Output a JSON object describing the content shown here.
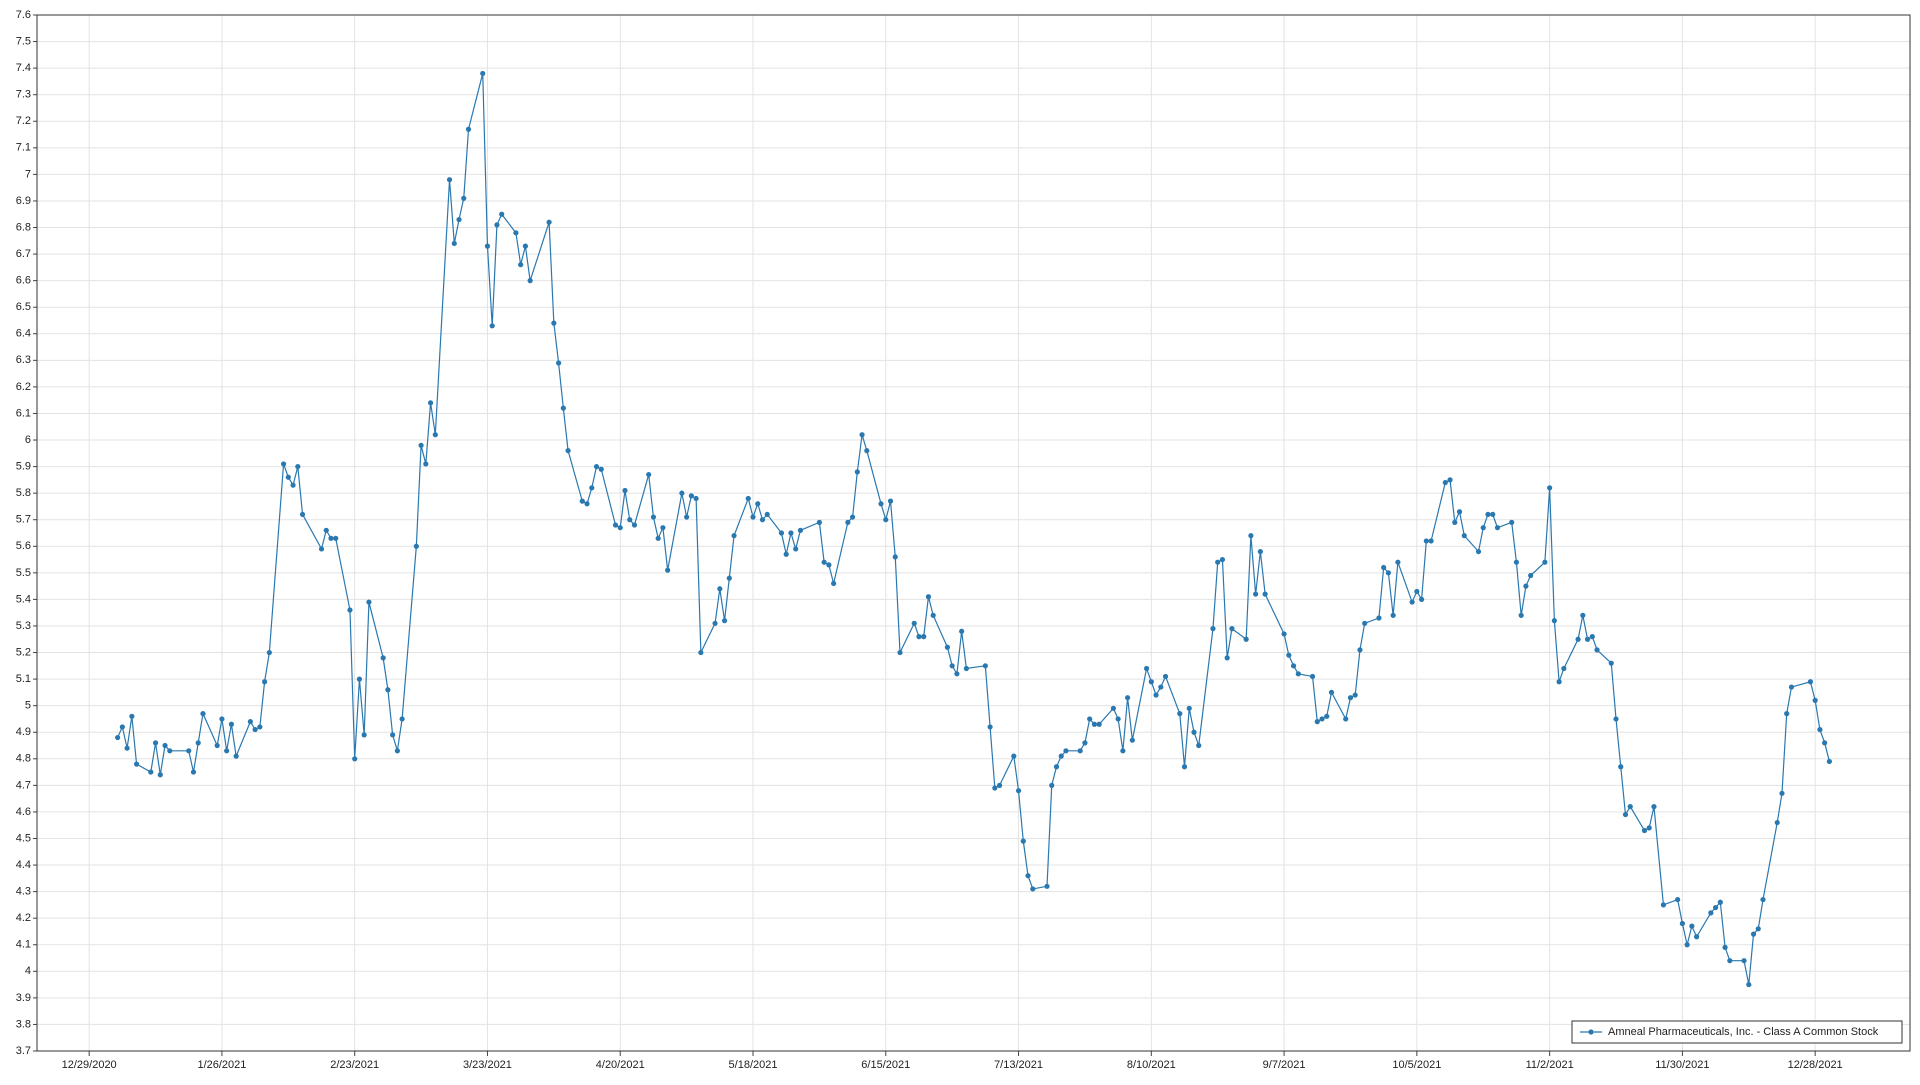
{
  "chart_data": {
    "type": "line",
    "x": [
      "2021-01-04",
      "2021-01-05",
      "2021-01-06",
      "2021-01-07",
      "2021-01-08",
      "2021-01-11",
      "2021-01-12",
      "2021-01-13",
      "2021-01-14",
      "2021-01-15",
      "2021-01-19",
      "2021-01-20",
      "2021-01-21",
      "2021-01-22",
      "2021-01-25",
      "2021-01-26",
      "2021-01-27",
      "2021-01-28",
      "2021-01-29",
      "2021-02-01",
      "2021-02-02",
      "2021-02-03",
      "2021-02-04",
      "2021-02-05",
      "2021-02-08",
      "2021-02-09",
      "2021-02-10",
      "2021-02-11",
      "2021-02-12",
      "2021-02-16",
      "2021-02-17",
      "2021-02-18",
      "2021-02-19",
      "2021-02-22",
      "2021-02-23",
      "2021-02-24",
      "2021-02-25",
      "2021-02-26",
      "2021-03-01",
      "2021-03-02",
      "2021-03-03",
      "2021-03-04",
      "2021-03-05",
      "2021-03-08",
      "2021-03-09",
      "2021-03-10",
      "2021-03-11",
      "2021-03-12",
      "2021-03-15",
      "2021-03-16",
      "2021-03-17",
      "2021-03-18",
      "2021-03-19",
      "2021-03-22",
      "2021-03-23",
      "2021-03-24",
      "2021-03-25",
      "2021-03-26",
      "2021-03-29",
      "2021-03-30",
      "2021-03-31",
      "2021-04-01",
      "2021-04-05",
      "2021-04-06",
      "2021-04-07",
      "2021-04-08",
      "2021-04-09",
      "2021-04-12",
      "2021-04-13",
      "2021-04-14",
      "2021-04-15",
      "2021-04-16",
      "2021-04-19",
      "2021-04-20",
      "2021-04-21",
      "2021-04-22",
      "2021-04-23",
      "2021-04-26",
      "2021-04-27",
      "2021-04-28",
      "2021-04-29",
      "2021-04-30",
      "2021-05-03",
      "2021-05-04",
      "2021-05-05",
      "2021-05-06",
      "2021-05-07",
      "2021-05-10",
      "2021-05-11",
      "2021-05-12",
      "2021-05-13",
      "2021-05-14",
      "2021-05-17",
      "2021-05-18",
      "2021-05-19",
      "2021-05-20",
      "2021-05-21",
      "2021-05-24",
      "2021-05-25",
      "2021-05-26",
      "2021-05-27",
      "2021-05-28",
      "2021-06-01",
      "2021-06-02",
      "2021-06-03",
      "2021-06-04",
      "2021-06-07",
      "2021-06-08",
      "2021-06-09",
      "2021-06-10",
      "2021-06-11",
      "2021-06-14",
      "2021-06-15",
      "2021-06-16",
      "2021-06-17",
      "2021-06-18",
      "2021-06-21",
      "2021-06-22",
      "2021-06-23",
      "2021-06-24",
      "2021-06-25",
      "2021-06-28",
      "2021-06-29",
      "2021-06-30",
      "2021-07-01",
      "2021-07-02",
      "2021-07-06",
      "2021-07-07",
      "2021-07-08",
      "2021-07-09",
      "2021-07-12",
      "2021-07-13",
      "2021-07-14",
      "2021-07-15",
      "2021-07-16",
      "2021-07-19",
      "2021-07-20",
      "2021-07-21",
      "2021-07-22",
      "2021-07-23",
      "2021-07-26",
      "2021-07-27",
      "2021-07-28",
      "2021-07-29",
      "2021-07-30",
      "2021-08-02",
      "2021-08-03",
      "2021-08-04",
      "2021-08-05",
      "2021-08-06",
      "2021-08-09",
      "2021-08-10",
      "2021-08-11",
      "2021-08-12",
      "2021-08-13",
      "2021-08-16",
      "2021-08-17",
      "2021-08-18",
      "2021-08-19",
      "2021-08-20",
      "2021-08-23",
      "2021-08-24",
      "2021-08-25",
      "2021-08-26",
      "2021-08-27",
      "2021-08-30",
      "2021-08-31",
      "2021-09-01",
      "2021-09-02",
      "2021-09-03",
      "2021-09-07",
      "2021-09-08",
      "2021-09-09",
      "2021-09-10",
      "2021-09-13",
      "2021-09-14",
      "2021-09-15",
      "2021-09-16",
      "2021-09-17",
      "2021-09-20",
      "2021-09-21",
      "2021-09-22",
      "2021-09-23",
      "2021-09-24",
      "2021-09-27",
      "2021-09-28",
      "2021-09-29",
      "2021-09-30",
      "2021-10-01",
      "2021-10-04",
      "2021-10-05",
      "2021-10-06",
      "2021-10-07",
      "2021-10-08",
      "2021-10-11",
      "2021-10-12",
      "2021-10-13",
      "2021-10-14",
      "2021-10-15",
      "2021-10-18",
      "2021-10-19",
      "2021-10-20",
      "2021-10-21",
      "2021-10-22",
      "2021-10-25",
      "2021-10-26",
      "2021-10-27",
      "2021-10-28",
      "2021-10-29",
      "2021-11-01",
      "2021-11-02",
      "2021-11-03",
      "2021-11-04",
      "2021-11-05",
      "2021-11-08",
      "2021-11-09",
      "2021-11-10",
      "2021-11-11",
      "2021-11-12",
      "2021-11-15",
      "2021-11-16",
      "2021-11-17",
      "2021-11-18",
      "2021-11-19",
      "2021-11-22",
      "2021-11-23",
      "2021-11-24",
      "2021-11-26",
      "2021-11-29",
      "2021-11-30",
      "2021-12-01",
      "2021-12-02",
      "2021-12-03",
      "2021-12-06",
      "2021-12-07",
      "2021-12-08",
      "2021-12-09",
      "2021-12-10",
      "2021-12-13",
      "2021-12-14",
      "2021-12-15",
      "2021-12-16",
      "2021-12-17",
      "2021-12-20",
      "2021-12-21",
      "2021-12-22",
      "2021-12-23",
      "2021-12-27",
      "2021-12-28",
      "2021-12-29",
      "2021-12-30",
      "2021-12-31"
    ],
    "series": [
      {
        "name": "Amneal Pharmaceuticals, Inc. - Class A Common Stock",
        "color": "#2a78b0",
        "values": [
          4.88,
          4.92,
          4.84,
          4.96,
          4.78,
          4.75,
          4.86,
          4.74,
          4.85,
          4.83,
          4.83,
          4.75,
          4.86,
          4.97,
          4.85,
          4.95,
          4.83,
          4.93,
          4.81,
          4.94,
          4.91,
          4.92,
          5.09,
          5.2,
          5.91,
          5.86,
          5.83,
          5.9,
          5.72,
          5.59,
          5.66,
          5.63,
          5.63,
          5.36,
          4.8,
          5.1,
          4.89,
          5.39,
          5.18,
          5.06,
          4.89,
          4.83,
          4.95,
          5.6,
          5.98,
          5.91,
          6.14,
          6.02,
          6.98,
          6.74,
          6.83,
          6.91,
          7.17,
          7.38,
          6.73,
          6.43,
          6.81,
          6.85,
          6.78,
          6.66,
          6.73,
          6.6,
          6.82,
          6.44,
          6.29,
          6.12,
          5.96,
          5.77,
          5.76,
          5.82,
          5.9,
          5.89,
          5.68,
          5.67,
          5.81,
          5.7,
          5.68,
          5.87,
          5.71,
          5.63,
          5.67,
          5.51,
          5.8,
          5.71,
          5.79,
          5.78,
          5.2,
          5.31,
          5.44,
          5.32,
          5.48,
          5.64,
          5.78,
          5.71,
          5.76,
          5.7,
          5.72,
          5.65,
          5.57,
          5.65,
          5.59,
          5.66,
          5.69,
          5.54,
          5.53,
          5.46,
          5.69,
          5.71,
          5.88,
          6.02,
          5.96,
          5.76,
          5.7,
          5.77,
          5.56,
          5.2,
          5.31,
          5.26,
          5.26,
          5.41,
          5.34,
          5.22,
          5.15,
          5.12,
          5.28,
          5.14,
          5.15,
          4.92,
          4.69,
          4.7,
          4.81,
          4.68,
          4.49,
          4.36,
          4.31,
          4.32,
          4.7,
          4.77,
          4.81,
          4.83,
          4.83,
          4.86,
          4.95,
          4.93,
          4.93,
          4.99,
          4.95,
          4.83,
          5.03,
          4.87,
          5.14,
          5.09,
          5.04,
          5.07,
          5.11,
          4.97,
          4.77,
          4.99,
          4.9,
          4.85,
          5.29,
          5.54,
          5.55,
          5.18,
          5.29,
          5.25,
          5.64,
          5.42,
          5.58,
          5.42,
          5.27,
          5.19,
          5.15,
          5.12,
          5.11,
          4.94,
          4.95,
          4.96,
          5.05,
          4.95,
          5.03,
          5.04,
          5.21,
          5.31,
          5.33,
          5.52,
          5.5,
          5.34,
          5.54,
          5.39,
          5.43,
          5.4,
          5.62,
          5.62,
          5.84,
          5.85,
          5.69,
          5.73,
          5.64,
          5.58,
          5.67,
          5.72,
          5.72,
          5.67,
          5.69,
          5.54,
          5.34,
          5.45,
          5.49,
          5.54,
          5.82,
          5.32,
          5.09,
          5.14,
          5.25,
          5.34,
          5.25,
          5.26,
          5.21,
          5.16,
          4.95,
          4.77,
          4.59,
          4.62,
          4.53,
          4.54,
          4.62,
          4.25,
          4.27,
          4.18,
          4.1,
          4.17,
          4.13,
          4.22,
          4.24,
          4.26,
          4.09,
          4.04,
          4.04,
          3.95,
          4.14,
          4.16,
          4.27,
          4.56,
          4.67,
          4.97,
          5.07,
          5.09,
          5.02,
          4.91,
          4.86,
          4.79
        ]
      }
    ],
    "xlim": [
      "2020-12-18",
      "2022-01-17"
    ],
    "xticks": [
      {
        "value": "2020-12-29",
        "label": "12/29/2020"
      },
      {
        "value": "2021-01-26",
        "label": "1/26/2021"
      },
      {
        "value": "2021-02-23",
        "label": "2/23/2021"
      },
      {
        "value": "2021-03-23",
        "label": "3/23/2021"
      },
      {
        "value": "2021-04-20",
        "label": "4/20/2021"
      },
      {
        "value": "2021-05-18",
        "label": "5/18/2021"
      },
      {
        "value": "2021-06-15",
        "label": "6/15/2021"
      },
      {
        "value": "2021-07-13",
        "label": "7/13/2021"
      },
      {
        "value": "2021-08-10",
        "label": "8/10/2021"
      },
      {
        "value": "2021-09-07",
        "label": "9/7/2021"
      },
      {
        "value": "2021-10-05",
        "label": "10/5/2021"
      },
      {
        "value": "2021-11-02",
        "label": "11/2/2021"
      },
      {
        "value": "2021-11-30",
        "label": "11/30/2021"
      },
      {
        "value": "2021-12-28",
        "label": "12/28/2021"
      }
    ],
    "ylim": [
      3.7,
      7.6
    ],
    "yticks": [
      3.7,
      3.8,
      3.9,
      4,
      4.1,
      4.2,
      4.3,
      4.4,
      4.5,
      4.6,
      4.7,
      4.8,
      4.9,
      5,
      5.1,
      5.2,
      5.3,
      5.4,
      5.5,
      5.6,
      5.7,
      5.8,
      5.9,
      6,
      6.1,
      6.2,
      6.3,
      6.4,
      6.5,
      6.6,
      6.7,
      6.8,
      6.9,
      7,
      7.1,
      7.2,
      7.3,
      7.4,
      7.5,
      7.6
    ],
    "grid": true,
    "markers": true,
    "legend": "lower right"
  }
}
